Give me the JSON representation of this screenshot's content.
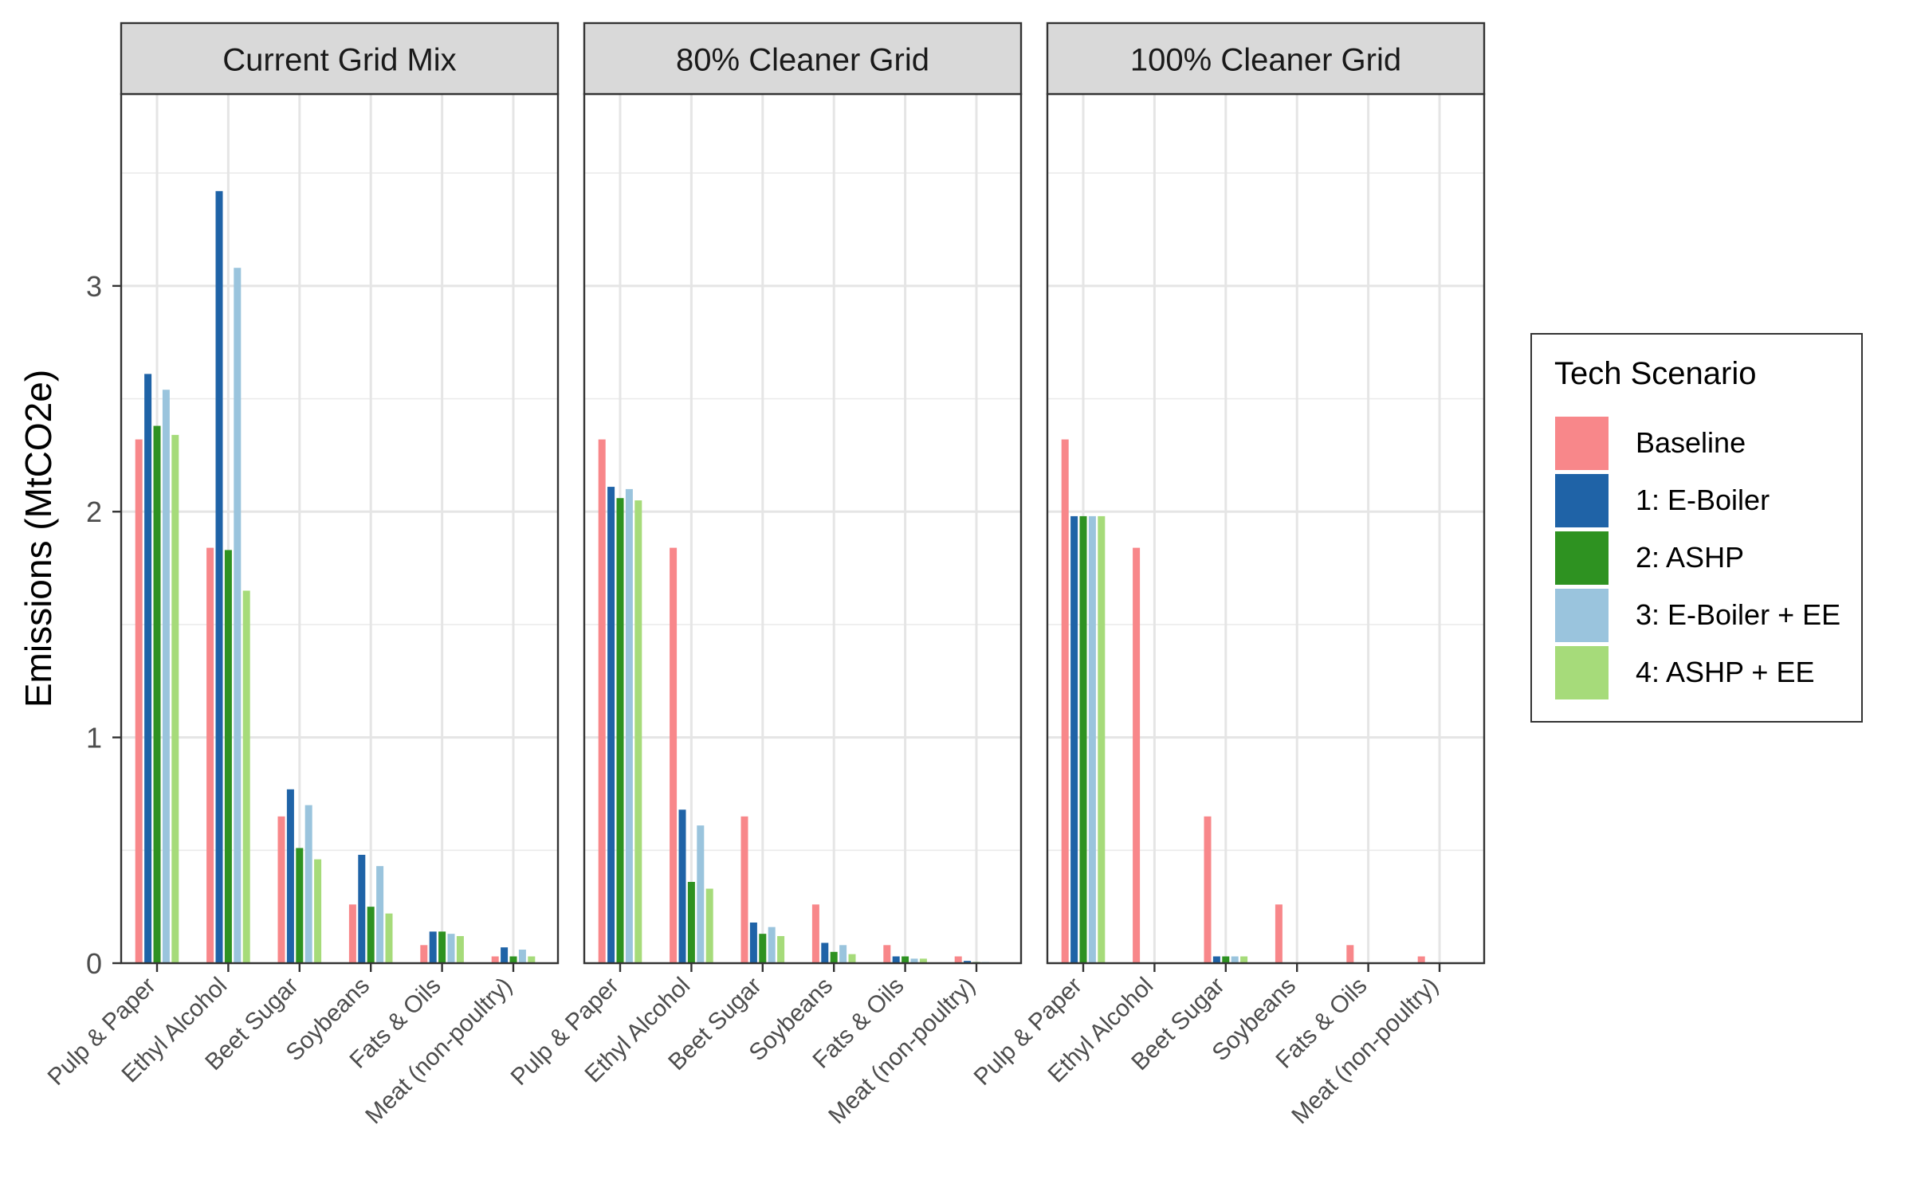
{
  "chart_data": {
    "type": "bar",
    "ylabel": "Emissions (MtCO2e)",
    "ylim": [
      0,
      3.85
    ],
    "y_ticks": [
      0,
      1,
      2,
      3
    ],
    "grid": true,
    "legend_position": "right",
    "legend_title": "Tech Scenario",
    "categories": [
      "Pulp & Paper",
      "Ethyl Alcohol",
      "Beet Sugar",
      "Soybeans",
      "Fats & Oils",
      "Meat (non-poultry)"
    ],
    "series_meta": [
      {
        "name": "Baseline",
        "color": "#F8878A"
      },
      {
        "name": "1: E-Boiler",
        "color": "#1F63A7"
      },
      {
        "name": "2: ASHP",
        "color": "#2E9221"
      },
      {
        "name": "3: E-Boiler + EE",
        "color": "#9AC4DD"
      },
      {
        "name": "4: ASHP + EE",
        "color": "#A6DB7A"
      }
    ],
    "panels": [
      {
        "title": "Current Grid Mix",
        "series": [
          {
            "name": "Baseline",
            "values": [
              2.32,
              1.84,
              0.65,
              0.26,
              0.08,
              0.03
            ]
          },
          {
            "name": "1: E-Boiler",
            "values": [
              2.61,
              3.42,
              0.77,
              0.48,
              0.14,
              0.07
            ]
          },
          {
            "name": "2: ASHP",
            "values": [
              2.38,
              1.83,
              0.51,
              0.25,
              0.14,
              0.03
            ]
          },
          {
            "name": "3: E-Boiler + EE",
            "values": [
              2.54,
              3.08,
              0.7,
              0.43,
              0.13,
              0.06
            ]
          },
          {
            "name": "4: ASHP + EE",
            "values": [
              2.34,
              1.65,
              0.46,
              0.22,
              0.12,
              0.03
            ]
          }
        ]
      },
      {
        "title": "80% Cleaner Grid",
        "series": [
          {
            "name": "Baseline",
            "values": [
              2.32,
              1.84,
              0.65,
              0.26,
              0.08,
              0.03
            ]
          },
          {
            "name": "1: E-Boiler",
            "values": [
              2.11,
              0.68,
              0.18,
              0.09,
              0.03,
              0.01
            ]
          },
          {
            "name": "2: ASHP",
            "values": [
              2.06,
              0.36,
              0.13,
              0.05,
              0.03,
              0.005
            ]
          },
          {
            "name": "3: E-Boiler + EE",
            "values": [
              2.1,
              0.61,
              0.16,
              0.08,
              0.02,
              0.005
            ]
          },
          {
            "name": "4: ASHP + EE",
            "values": [
              2.05,
              0.33,
              0.12,
              0.04,
              0.02,
              0.003
            ]
          }
        ]
      },
      {
        "title": "100% Cleaner Grid",
        "series": [
          {
            "name": "Baseline",
            "values": [
              2.32,
              1.84,
              0.65,
              0.26,
              0.08,
              0.03
            ]
          },
          {
            "name": "1: E-Boiler",
            "values": [
              1.98,
              0,
              0.03,
              0,
              0,
              0
            ]
          },
          {
            "name": "2: ASHP",
            "values": [
              1.98,
              0,
              0.03,
              0,
              0,
              0
            ]
          },
          {
            "name": "3: E-Boiler + EE",
            "values": [
              1.98,
              0,
              0.03,
              0,
              0,
              0
            ]
          },
          {
            "name": "4: ASHP + EE",
            "values": [
              1.98,
              0,
              0.03,
              0,
              0,
              0
            ]
          }
        ]
      }
    ]
  }
}
